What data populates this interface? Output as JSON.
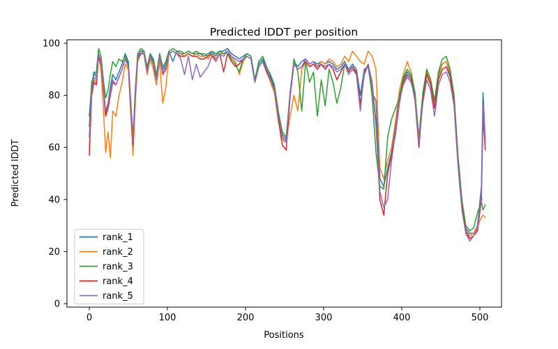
{
  "figure": {
    "background": "#ffffff",
    "frame_color": "#000000"
  },
  "chart_data": {
    "type": "line",
    "title": "Predicted lDDT per position",
    "xlabel": "Positions",
    "ylabel": "Predicted lDDT",
    "xlim": [
      -25,
      532
    ],
    "ylim": [
      0,
      100
    ],
    "x_ticks": [
      0,
      100,
      200,
      300,
      400,
      500
    ],
    "y_ticks": [
      0,
      20,
      40,
      60,
      80,
      100
    ],
    "grid": false,
    "legend_position": "lower-left",
    "legend_border_color": "#cccccc",
    "x": [
      0,
      3,
      6,
      9,
      12,
      15,
      18,
      21,
      24,
      27,
      30,
      34,
      38,
      42,
      46,
      50,
      53,
      56,
      59,
      62,
      66,
      70,
      74,
      78,
      82,
      86,
      90,
      94,
      98,
      102,
      107,
      112,
      117,
      122,
      127,
      132,
      137,
      142,
      147,
      152,
      157,
      162,
      167,
      172,
      177,
      182,
      187,
      192,
      197,
      202,
      207,
      212,
      217,
      222,
      227,
      232,
      237,
      242,
      247,
      252,
      257,
      262,
      267,
      272,
      277,
      282,
      287,
      292,
      297,
      302,
      307,
      312,
      317,
      322,
      327,
      332,
      337,
      342,
      347,
      352,
      357,
      362,
      367,
      372,
      377,
      382,
      387,
      392,
      397,
      402,
      407,
      412,
      417,
      422,
      427,
      432,
      437,
      442,
      447,
      452,
      457,
      462,
      467,
      472,
      477,
      482,
      487,
      492,
      497,
      502,
      504,
      507
    ],
    "series": [
      {
        "name": "rank_1",
        "color": "#1f77b4",
        "values": [
          72,
          84,
          89,
          87,
          96,
          93,
          84,
          73,
          77,
          83,
          88,
          86,
          89,
          92,
          96,
          93,
          78,
          63,
          82,
          95,
          97,
          97,
          90,
          96,
          93,
          87,
          96,
          90,
          92,
          97,
          93,
          97,
          96,
          96,
          97,
          96,
          96,
          96,
          95,
          96,
          97,
          95,
          97,
          97,
          98,
          96,
          95,
          94,
          95,
          96,
          95,
          86,
          92,
          94,
          90,
          87,
          83,
          73,
          65,
          63,
          81,
          93,
          91,
          93,
          94,
          92,
          93,
          92,
          93,
          92,
          93,
          92,
          90,
          91,
          93,
          90,
          92,
          90,
          80,
          90,
          91,
          81,
          78,
          48,
          45,
          52,
          58,
          68,
          80,
          86,
          89,
          87,
          80,
          63,
          80,
          90,
          86,
          77,
          88,
          92,
          93,
          88,
          78,
          55,
          38,
          29,
          27,
          27,
          30,
          45,
          81,
          62
        ]
      },
      {
        "name": "rank_2",
        "color": "#ff7f0e",
        "values": [
          60,
          80,
          86,
          85,
          95,
          90,
          75,
          58,
          66,
          56,
          74,
          72,
          80,
          85,
          92,
          90,
          73,
          57,
          78,
          93,
          96,
          96,
          88,
          94,
          90,
          84,
          93,
          77,
          83,
          96,
          97,
          96,
          96,
          95,
          96,
          95,
          96,
          95,
          95,
          94,
          96,
          94,
          96,
          96,
          97,
          95,
          93,
          88,
          93,
          95,
          94,
          85,
          91,
          93,
          89,
          85,
          81,
          70,
          63,
          62,
          72,
          80,
          74,
          90,
          93,
          91,
          92,
          91,
          93,
          92,
          94,
          93,
          91,
          92,
          95,
          93,
          97,
          95,
          93,
          92,
          97,
          95,
          90,
          52,
          48,
          55,
          60,
          70,
          82,
          88,
          93,
          89,
          81,
          62,
          79,
          89,
          85,
          76,
          87,
          92,
          93,
          89,
          79,
          56,
          39,
          28,
          26,
          27,
          30,
          33,
          34,
          33
        ]
      },
      {
        "name": "rank_3",
        "color": "#2ca02c",
        "values": [
          68,
          85,
          88,
          89,
          98,
          95,
          86,
          79,
          82,
          88,
          93,
          91,
          94,
          93,
          95,
          92,
          77,
          64,
          83,
          96,
          98,
          97,
          91,
          96,
          94,
          88,
          96,
          91,
          93,
          97,
          98,
          97,
          97,
          96,
          97,
          96,
          97,
          96,
          96,
          95,
          97,
          96,
          97,
          96,
          97,
          94,
          92,
          89,
          94,
          96,
          95,
          86,
          93,
          95,
          91,
          88,
          84,
          74,
          66,
          64,
          80,
          94,
          89,
          74,
          93,
          85,
          89,
          72,
          86,
          76,
          90,
          85,
          77,
          83,
          92,
          89,
          91,
          88,
          77,
          88,
          92,
          80,
          58,
          45,
          44,
          64,
          71,
          75,
          79,
          87,
          90,
          88,
          81,
          64,
          81,
          90,
          86,
          78,
          89,
          94,
          95,
          90,
          80,
          57,
          40,
          30,
          28,
          29,
          35,
          39,
          36,
          38
        ]
      },
      {
        "name": "rank_4",
        "color": "#d62728",
        "values": [
          57,
          80,
          85,
          84,
          95,
          92,
          82,
          72,
          75,
          80,
          85,
          84,
          87,
          90,
          94,
          91,
          75,
          61,
          80,
          94,
          96,
          96,
          89,
          95,
          92,
          86,
          95,
          88,
          90,
          96,
          97,
          96,
          95,
          95,
          96,
          95,
          95,
          94,
          94,
          95,
          96,
          93,
          96,
          89,
          96,
          93,
          91,
          92,
          94,
          95,
          94,
          85,
          91,
          93,
          89,
          86,
          82,
          71,
          61,
          59,
          79,
          92,
          90,
          91,
          93,
          91,
          92,
          90,
          92,
          90,
          92,
          90,
          86,
          89,
          92,
          89,
          91,
          89,
          76,
          88,
          92,
          85,
          70,
          40,
          34,
          50,
          57,
          65,
          77,
          85,
          88,
          86,
          78,
          60,
          78,
          88,
          84,
          75,
          86,
          90,
          91,
          87,
          77,
          54,
          37,
          28,
          25,
          26,
          28,
          40,
          72,
          59
        ]
      },
      {
        "name": "rank_5",
        "color": "#9467bd",
        "values": [
          64,
          82,
          87,
          86,
          96,
          93,
          83,
          74,
          77,
          81,
          86,
          84,
          87,
          90,
          94,
          91,
          76,
          62,
          81,
          94,
          97,
          96,
          89,
          95,
          92,
          86,
          95,
          89,
          91,
          96,
          97,
          96,
          94,
          88,
          95,
          86,
          92,
          87,
          89,
          91,
          95,
          93,
          96,
          95,
          97,
          95,
          94,
          93,
          94,
          95,
          94,
          85,
          91,
          93,
          90,
          86,
          82,
          72,
          64,
          62,
          80,
          92,
          90,
          91,
          94,
          92,
          93,
          91,
          92,
          91,
          92,
          91,
          89,
          90,
          92,
          88,
          90,
          88,
          74,
          89,
          92,
          84,
          68,
          43,
          37,
          40,
          55,
          66,
          78,
          84,
          87,
          85,
          79,
          62,
          77,
          86,
          82,
          72,
          84,
          88,
          89,
          85,
          76,
          53,
          36,
          27,
          24,
          26,
          29,
          42,
          76,
          61
        ]
      }
    ]
  }
}
